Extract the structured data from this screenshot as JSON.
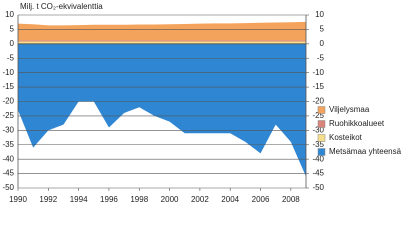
{
  "chart_data": {
    "type": "stacked_area",
    "y_axis_label": "Milj. t CO₂-ekvivalenttia",
    "x": [
      1990,
      1991,
      1992,
      1993,
      1994,
      1995,
      1996,
      1997,
      1998,
      1999,
      2000,
      2001,
      2002,
      2003,
      2004,
      2005,
      2006,
      2007,
      2008,
      2009
    ],
    "xlim": [
      1990,
      2009
    ],
    "xticks": [
      1990,
      1992,
      1994,
      1996,
      1998,
      2000,
      2002,
      2004,
      2006,
      2008
    ],
    "ylim": [
      -50,
      10
    ],
    "yticks": [
      -50,
      -45,
      -40,
      -35,
      -30,
      -25,
      -20,
      -15,
      -10,
      -5,
      0,
      5,
      10
    ],
    "y2lim": [
      -50,
      10
    ],
    "y2ticks": [
      -50,
      -45,
      -40,
      -35,
      -30,
      -25,
      -20,
      -15,
      -10,
      -5,
      0,
      5,
      10
    ],
    "grid": true,
    "legend": "right",
    "series": [
      {
        "name": "Viljelysmaa",
        "color": "#f4a35c",
        "values": [
          5.8,
          5.6,
          5.2,
          5.2,
          5.3,
          5.4,
          5.4,
          5.4,
          5.5,
          5.5,
          5.6,
          5.7,
          5.8,
          5.9,
          5.9,
          6.0,
          6.1,
          6.2,
          6.3,
          6.4
        ]
      },
      {
        "name": "Ruohikkoalueet",
        "color": "#d9837a",
        "values": [
          0.4,
          0.4,
          0.4,
          0.4,
          0.4,
          0.4,
          0.4,
          0.4,
          0.4,
          0.4,
          0.4,
          0.4,
          0.4,
          0.4,
          0.4,
          0.4,
          0.4,
          0.4,
          0.4,
          0.4
        ]
      },
      {
        "name": "Kosteikot",
        "color": "#f5df8a",
        "values": [
          0.8,
          0.8,
          0.8,
          0.8,
          0.8,
          0.8,
          0.8,
          0.8,
          0.8,
          0.8,
          0.8,
          0.8,
          0.8,
          0.8,
          0.8,
          0.8,
          0.8,
          0.8,
          0.8,
          0.8
        ]
      },
      {
        "name": "Metsämaa yhteensä",
        "color": "#2f86d3",
        "values": [
          -23,
          -36,
          -30,
          -28,
          -20,
          -20,
          -29,
          -24,
          -22,
          -25,
          -27,
          -31,
          -31,
          -31,
          -31,
          -34,
          -38,
          -28,
          -34,
          -46
        ]
      }
    ]
  }
}
